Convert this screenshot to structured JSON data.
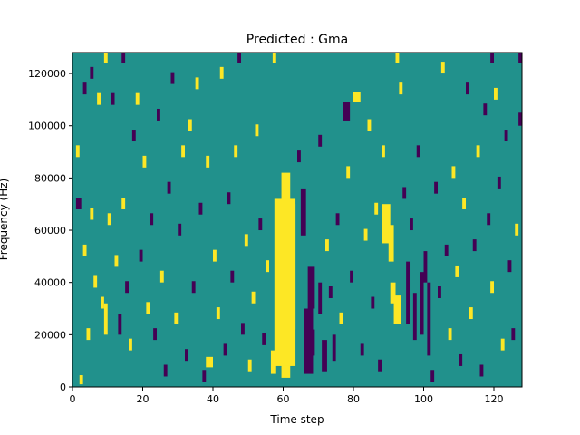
{
  "chart_data": {
    "type": "heatmap",
    "title": "Predicted : Gma",
    "xlabel": "Time step",
    "ylabel": "Frequency (Hz)",
    "xlim": [
      0,
      128
    ],
    "ylim": [
      0,
      128000
    ],
    "x_ticks": [
      {
        "value": 0,
        "label": "0"
      },
      {
        "value": 20,
        "label": "20"
      },
      {
        "value": 40,
        "label": "40"
      },
      {
        "value": 60,
        "label": "60"
      },
      {
        "value": 80,
        "label": "80"
      },
      {
        "value": 100,
        "label": "100"
      },
      {
        "value": 120,
        "label": "120"
      }
    ],
    "y_ticks": [
      {
        "value": 0,
        "label": "0"
      },
      {
        "value": 20000,
        "label": "20000"
      },
      {
        "value": 40000,
        "label": "40000"
      },
      {
        "value": 60000,
        "label": "60000"
      },
      {
        "value": 80000,
        "label": "80000"
      },
      {
        "value": 100000,
        "label": "100000"
      },
      {
        "value": 120000,
        "label": "120000"
      }
    ],
    "colormap": {
      "low": "#440154",
      "mid": "#21918c",
      "high": "#fde725"
    },
    "background_level": "mid",
    "cells": [
      {
        "x0": 59.5,
        "x1": 62,
        "y0": 3500,
        "y1": 82000,
        "level": "high"
      },
      {
        "x0": 57.5,
        "x1": 63.5,
        "y0": 8000,
        "y1": 72000,
        "level": "high"
      },
      {
        "x0": 62,
        "x1": 63.5,
        "y0": 22000,
        "y1": 70000,
        "level": "high"
      },
      {
        "x0": 56.5,
        "x1": 58,
        "y0": 5000,
        "y1": 14000,
        "level": "high"
      },
      {
        "x0": 66,
        "x1": 68.5,
        "y0": 5000,
        "y1": 30000,
        "level": "low"
      },
      {
        "x0": 67,
        "x1": 69,
        "y0": 30000,
        "y1": 46000,
        "level": "low"
      },
      {
        "x0": 65,
        "x1": 66.5,
        "y0": 58000,
        "y1": 76000,
        "level": "low"
      },
      {
        "x0": 68,
        "x1": 69,
        "y0": 12000,
        "y1": 22000,
        "level": "low"
      },
      {
        "x0": 70,
        "x1": 71,
        "y0": 28000,
        "y1": 40000,
        "level": "low"
      },
      {
        "x0": 71,
        "x1": 72.5,
        "y0": 6000,
        "y1": 18000,
        "level": "low"
      },
      {
        "x0": 74,
        "x1": 75,
        "y0": 10000,
        "y1": 20000,
        "level": "low"
      },
      {
        "x0": 88,
        "x1": 90.5,
        "y0": 55000,
        "y1": 70000,
        "level": "high"
      },
      {
        "x0": 90,
        "x1": 91.5,
        "y0": 48000,
        "y1": 62000,
        "level": "high"
      },
      {
        "x0": 91.5,
        "x1": 93.5,
        "y0": 24000,
        "y1": 35000,
        "level": "high"
      },
      {
        "x0": 90.5,
        "x1": 92,
        "y0": 32000,
        "y1": 40000,
        "level": "high"
      },
      {
        "x0": 95,
        "x1": 96,
        "y0": 24000,
        "y1": 48000,
        "level": "low"
      },
      {
        "x0": 97,
        "x1": 98,
        "y0": 18000,
        "y1": 36000,
        "level": "low"
      },
      {
        "x0": 99,
        "x1": 100,
        "y0": 20000,
        "y1": 44000,
        "level": "low"
      },
      {
        "x0": 101,
        "x1": 102,
        "y0": 12000,
        "y1": 40000,
        "level": "low"
      },
      {
        "x0": 100,
        "x1": 101,
        "y0": 40000,
        "y1": 52000,
        "level": "low"
      },
      {
        "x0": 9,
        "x1": 10,
        "y0": 20000,
        "y1": 32000,
        "level": "high"
      },
      {
        "x0": 13,
        "x1": 14,
        "y0": 20000,
        "y1": 28000,
        "level": "low"
      },
      {
        "x0": 38,
        "x1": 40,
        "y0": 7500,
        "y1": 11500,
        "level": "high"
      },
      {
        "x0": 77,
        "x1": 79,
        "y0": 102000,
        "y1": 109000,
        "level": "low"
      },
      {
        "x0": 80,
        "x1": 82,
        "y0": 109000,
        "y1": 113000,
        "level": "high"
      },
      {
        "x0": 127,
        "x1": 128.5,
        "y0": 100000,
        "y1": 105000,
        "level": "low"
      },
      {
        "x0": 1,
        "x1": 2.5,
        "y0": 68000,
        "y1": 72500,
        "level": "low"
      },
      {
        "x0": 2,
        "x1": 3,
        "y0": 1000,
        "y1": 4500,
        "level": "high"
      },
      {
        "x0": 4,
        "x1": 5,
        "y0": 18000,
        "y1": 22500,
        "level": "high"
      },
      {
        "x0": 6,
        "x1": 7,
        "y0": 38000,
        "y1": 42500,
        "level": "high"
      },
      {
        "x0": 5,
        "x1": 6,
        "y0": 64000,
        "y1": 68500,
        "level": "high"
      },
      {
        "x0": 3,
        "x1": 4,
        "y0": 50000,
        "y1": 54500,
        "level": "high"
      },
      {
        "x0": 1,
        "x1": 2,
        "y0": 88000,
        "y1": 92500,
        "level": "high"
      },
      {
        "x0": 3,
        "x1": 4,
        "y0": 112000,
        "y1": 116500,
        "level": "low"
      },
      {
        "x0": 5,
        "x1": 6,
        "y0": 118000,
        "y1": 122500,
        "level": "low"
      },
      {
        "x0": 7,
        "x1": 8,
        "y0": 108000,
        "y1": 112500,
        "level": "high"
      },
      {
        "x0": 8,
        "x1": 9,
        "y0": 30000,
        "y1": 34500,
        "level": "high"
      },
      {
        "x0": 10,
        "x1": 11,
        "y0": 62000,
        "y1": 66500,
        "level": "high"
      },
      {
        "x0": 11,
        "x1": 12,
        "y0": 108000,
        "y1": 112500,
        "level": "low"
      },
      {
        "x0": 12,
        "x1": 13,
        "y0": 46000,
        "y1": 50500,
        "level": "high"
      },
      {
        "x0": 14,
        "x1": 15,
        "y0": 68000,
        "y1": 72500,
        "level": "high"
      },
      {
        "x0": 15,
        "x1": 16,
        "y0": 36000,
        "y1": 40500,
        "level": "low"
      },
      {
        "x0": 16,
        "x1": 17,
        "y0": 14000,
        "y1": 18500,
        "level": "high"
      },
      {
        "x0": 17,
        "x1": 18,
        "y0": 94000,
        "y1": 98500,
        "level": "low"
      },
      {
        "x0": 18,
        "x1": 19,
        "y0": 108000,
        "y1": 112500,
        "level": "high"
      },
      {
        "x0": 19,
        "x1": 20,
        "y0": 48000,
        "y1": 52500,
        "level": "low"
      },
      {
        "x0": 20,
        "x1": 21,
        "y0": 84000,
        "y1": 88500,
        "level": "high"
      },
      {
        "x0": 21,
        "x1": 22,
        "y0": 28000,
        "y1": 32500,
        "level": "high"
      },
      {
        "x0": 22,
        "x1": 23,
        "y0": 62000,
        "y1": 66500,
        "level": "low"
      },
      {
        "x0": 23,
        "x1": 24,
        "y0": 18000,
        "y1": 22500,
        "level": "low"
      },
      {
        "x0": 24,
        "x1": 25,
        "y0": 102000,
        "y1": 106500,
        "level": "low"
      },
      {
        "x0": 25,
        "x1": 26,
        "y0": 40000,
        "y1": 44500,
        "level": "high"
      },
      {
        "x0": 26,
        "x1": 27,
        "y0": 4000,
        "y1": 8500,
        "level": "low"
      },
      {
        "x0": 27,
        "x1": 28,
        "y0": 74000,
        "y1": 78500,
        "level": "low"
      },
      {
        "x0": 28,
        "x1": 29,
        "y0": 116000,
        "y1": 120500,
        "level": "low"
      },
      {
        "x0": 29,
        "x1": 30,
        "y0": 24000,
        "y1": 28500,
        "level": "high"
      },
      {
        "x0": 30,
        "x1": 31,
        "y0": 58000,
        "y1": 62500,
        "level": "low"
      },
      {
        "x0": 31,
        "x1": 32,
        "y0": 88000,
        "y1": 92500,
        "level": "high"
      },
      {
        "x0": 32,
        "x1": 33,
        "y0": 10000,
        "y1": 14500,
        "level": "low"
      },
      {
        "x0": 33,
        "x1": 34,
        "y0": 98000,
        "y1": 102500,
        "level": "high"
      },
      {
        "x0": 34,
        "x1": 35,
        "y0": 36000,
        "y1": 40500,
        "level": "low"
      },
      {
        "x0": 35,
        "x1": 36,
        "y0": 114000,
        "y1": 118500,
        "level": "high"
      },
      {
        "x0": 36,
        "x1": 37,
        "y0": 66000,
        "y1": 70500,
        "level": "low"
      },
      {
        "x0": 37,
        "x1": 38,
        "y0": 2000,
        "y1": 6500,
        "level": "low"
      },
      {
        "x0": 38,
        "x1": 39,
        "y0": 84000,
        "y1": 88500,
        "level": "high"
      },
      {
        "x0": 40,
        "x1": 41,
        "y0": 48000,
        "y1": 52500,
        "level": "high"
      },
      {
        "x0": 41,
        "x1": 42,
        "y0": 26000,
        "y1": 30500,
        "level": "high"
      },
      {
        "x0": 42,
        "x1": 43,
        "y0": 118000,
        "y1": 122500,
        "level": "high"
      },
      {
        "x0": 43,
        "x1": 44,
        "y0": 12000,
        "y1": 16500,
        "level": "low"
      },
      {
        "x0": 44,
        "x1": 45,
        "y0": 70000,
        "y1": 74500,
        "level": "low"
      },
      {
        "x0": 45,
        "x1": 46,
        "y0": 40000,
        "y1": 44500,
        "level": "low"
      },
      {
        "x0": 46,
        "x1": 47,
        "y0": 88000,
        "y1": 92500,
        "level": "high"
      },
      {
        "x0": 47,
        "x1": 48,
        "y0": 124000,
        "y1": 128000,
        "level": "low"
      },
      {
        "x0": 48,
        "x1": 49,
        "y0": 20000,
        "y1": 24500,
        "level": "low"
      },
      {
        "x0": 49,
        "x1": 50,
        "y0": 54000,
        "y1": 58500,
        "level": "high"
      },
      {
        "x0": 50,
        "x1": 51,
        "y0": 6000,
        "y1": 10500,
        "level": "high"
      },
      {
        "x0": 51,
        "x1": 52,
        "y0": 32000,
        "y1": 36500,
        "level": "high"
      },
      {
        "x0": 52,
        "x1": 53,
        "y0": 96000,
        "y1": 100500,
        "level": "high"
      },
      {
        "x0": 53,
        "x1": 54,
        "y0": 60000,
        "y1": 64500,
        "level": "low"
      },
      {
        "x0": 54,
        "x1": 55,
        "y0": 16000,
        "y1": 20500,
        "level": "low"
      },
      {
        "x0": 55,
        "x1": 56,
        "y0": 44000,
        "y1": 48500,
        "level": "high"
      },
      {
        "x0": 64,
        "x1": 65,
        "y0": 86000,
        "y1": 90500,
        "level": "low"
      },
      {
        "x0": 70,
        "x1": 71,
        "y0": 92000,
        "y1": 96500,
        "level": "low"
      },
      {
        "x0": 72,
        "x1": 73,
        "y0": 52000,
        "y1": 56500,
        "level": "high"
      },
      {
        "x0": 73,
        "x1": 74,
        "y0": 34000,
        "y1": 38500,
        "level": "low"
      },
      {
        "x0": 75,
        "x1": 76,
        "y0": 62000,
        "y1": 66500,
        "level": "low"
      },
      {
        "x0": 76,
        "x1": 77,
        "y0": 24000,
        "y1": 28500,
        "level": "high"
      },
      {
        "x0": 78,
        "x1": 79,
        "y0": 80000,
        "y1": 84500,
        "level": "high"
      },
      {
        "x0": 79,
        "x1": 80,
        "y0": 40000,
        "y1": 44500,
        "level": "low"
      },
      {
        "x0": 82,
        "x1": 83,
        "y0": 12000,
        "y1": 16500,
        "level": "low"
      },
      {
        "x0": 83,
        "x1": 84,
        "y0": 56000,
        "y1": 60500,
        "level": "high"
      },
      {
        "x0": 84,
        "x1": 85,
        "y0": 98000,
        "y1": 102500,
        "level": "high"
      },
      {
        "x0": 85,
        "x1": 86,
        "y0": 30000,
        "y1": 34500,
        "level": "low"
      },
      {
        "x0": 86,
        "x1": 87,
        "y0": 66000,
        "y1": 70500,
        "level": "high"
      },
      {
        "x0": 87,
        "x1": 88,
        "y0": 6000,
        "y1": 10500,
        "level": "low"
      },
      {
        "x0": 88,
        "x1": 89,
        "y0": 88000,
        "y1": 92500,
        "level": "high"
      },
      {
        "x0": 93,
        "x1": 94,
        "y0": 112000,
        "y1": 116500,
        "level": "high"
      },
      {
        "x0": 94,
        "x1": 95,
        "y0": 72000,
        "y1": 76500,
        "level": "low"
      },
      {
        "x0": 96,
        "x1": 97,
        "y0": 60000,
        "y1": 64500,
        "level": "low"
      },
      {
        "x0": 98,
        "x1": 99,
        "y0": 88000,
        "y1": 92500,
        "level": "low"
      },
      {
        "x0": 102,
        "x1": 103,
        "y0": 2000,
        "y1": 6500,
        "level": "low"
      },
      {
        "x0": 103,
        "x1": 104,
        "y0": 74000,
        "y1": 78500,
        "level": "low"
      },
      {
        "x0": 104,
        "x1": 105,
        "y0": 34000,
        "y1": 38500,
        "level": "low"
      },
      {
        "x0": 105,
        "x1": 106,
        "y0": 120000,
        "y1": 124500,
        "level": "high"
      },
      {
        "x0": 106,
        "x1": 107,
        "y0": 50000,
        "y1": 54500,
        "level": "low"
      },
      {
        "x0": 107,
        "x1": 108,
        "y0": 18000,
        "y1": 22500,
        "level": "high"
      },
      {
        "x0": 108,
        "x1": 109,
        "y0": 80000,
        "y1": 84500,
        "level": "high"
      },
      {
        "x0": 109,
        "x1": 110,
        "y0": 42000,
        "y1": 46500,
        "level": "high"
      },
      {
        "x0": 110,
        "x1": 111,
        "y0": 8000,
        "y1": 12500,
        "level": "low"
      },
      {
        "x0": 111,
        "x1": 112,
        "y0": 68000,
        "y1": 72500,
        "level": "high"
      },
      {
        "x0": 112,
        "x1": 113,
        "y0": 112000,
        "y1": 116500,
        "level": "low"
      },
      {
        "x0": 113,
        "x1": 114,
        "y0": 26000,
        "y1": 30500,
        "level": "high"
      },
      {
        "x0": 114,
        "x1": 115,
        "y0": 52000,
        "y1": 56500,
        "level": "low"
      },
      {
        "x0": 115,
        "x1": 116,
        "y0": 88000,
        "y1": 92500,
        "level": "high"
      },
      {
        "x0": 116,
        "x1": 117,
        "y0": 4000,
        "y1": 8500,
        "level": "low"
      },
      {
        "x0": 117,
        "x1": 118,
        "y0": 104000,
        "y1": 108500,
        "level": "low"
      },
      {
        "x0": 118,
        "x1": 119,
        "y0": 62000,
        "y1": 66500,
        "level": "low"
      },
      {
        "x0": 119,
        "x1": 120,
        "y0": 36000,
        "y1": 40500,
        "level": "high"
      },
      {
        "x0": 120,
        "x1": 121,
        "y0": 110000,
        "y1": 114500,
        "level": "high"
      },
      {
        "x0": 121,
        "x1": 122,
        "y0": 76000,
        "y1": 80500,
        "level": "low"
      },
      {
        "x0": 122,
        "x1": 123,
        "y0": 14000,
        "y1": 18500,
        "level": "high"
      },
      {
        "x0": 123,
        "x1": 124,
        "y0": 94000,
        "y1": 98500,
        "level": "low"
      },
      {
        "x0": 124,
        "x1": 125,
        "y0": 44000,
        "y1": 48500,
        "level": "low"
      },
      {
        "x0": 125,
        "x1": 126,
        "y0": 18000,
        "y1": 22500,
        "level": "low"
      },
      {
        "x0": 126,
        "x1": 127,
        "y0": 58000,
        "y1": 62500,
        "level": "high"
      },
      {
        "x0": 127,
        "x1": 128,
        "y0": 124000,
        "y1": 128000,
        "level": "low"
      },
      {
        "x0": 9,
        "x1": 10,
        "y0": 124000,
        "y1": 128000,
        "level": "high"
      },
      {
        "x0": 14,
        "x1": 15,
        "y0": 124000,
        "y1": 128000,
        "level": "low"
      },
      {
        "x0": 57,
        "x1": 58,
        "y0": 124000,
        "y1": 128000,
        "level": "high"
      },
      {
        "x0": 92,
        "x1": 93,
        "y0": 124000,
        "y1": 128000,
        "level": "high"
      },
      {
        "x0": 119,
        "x1": 120,
        "y0": 124000,
        "y1": 128000,
        "level": "low"
      }
    ]
  }
}
